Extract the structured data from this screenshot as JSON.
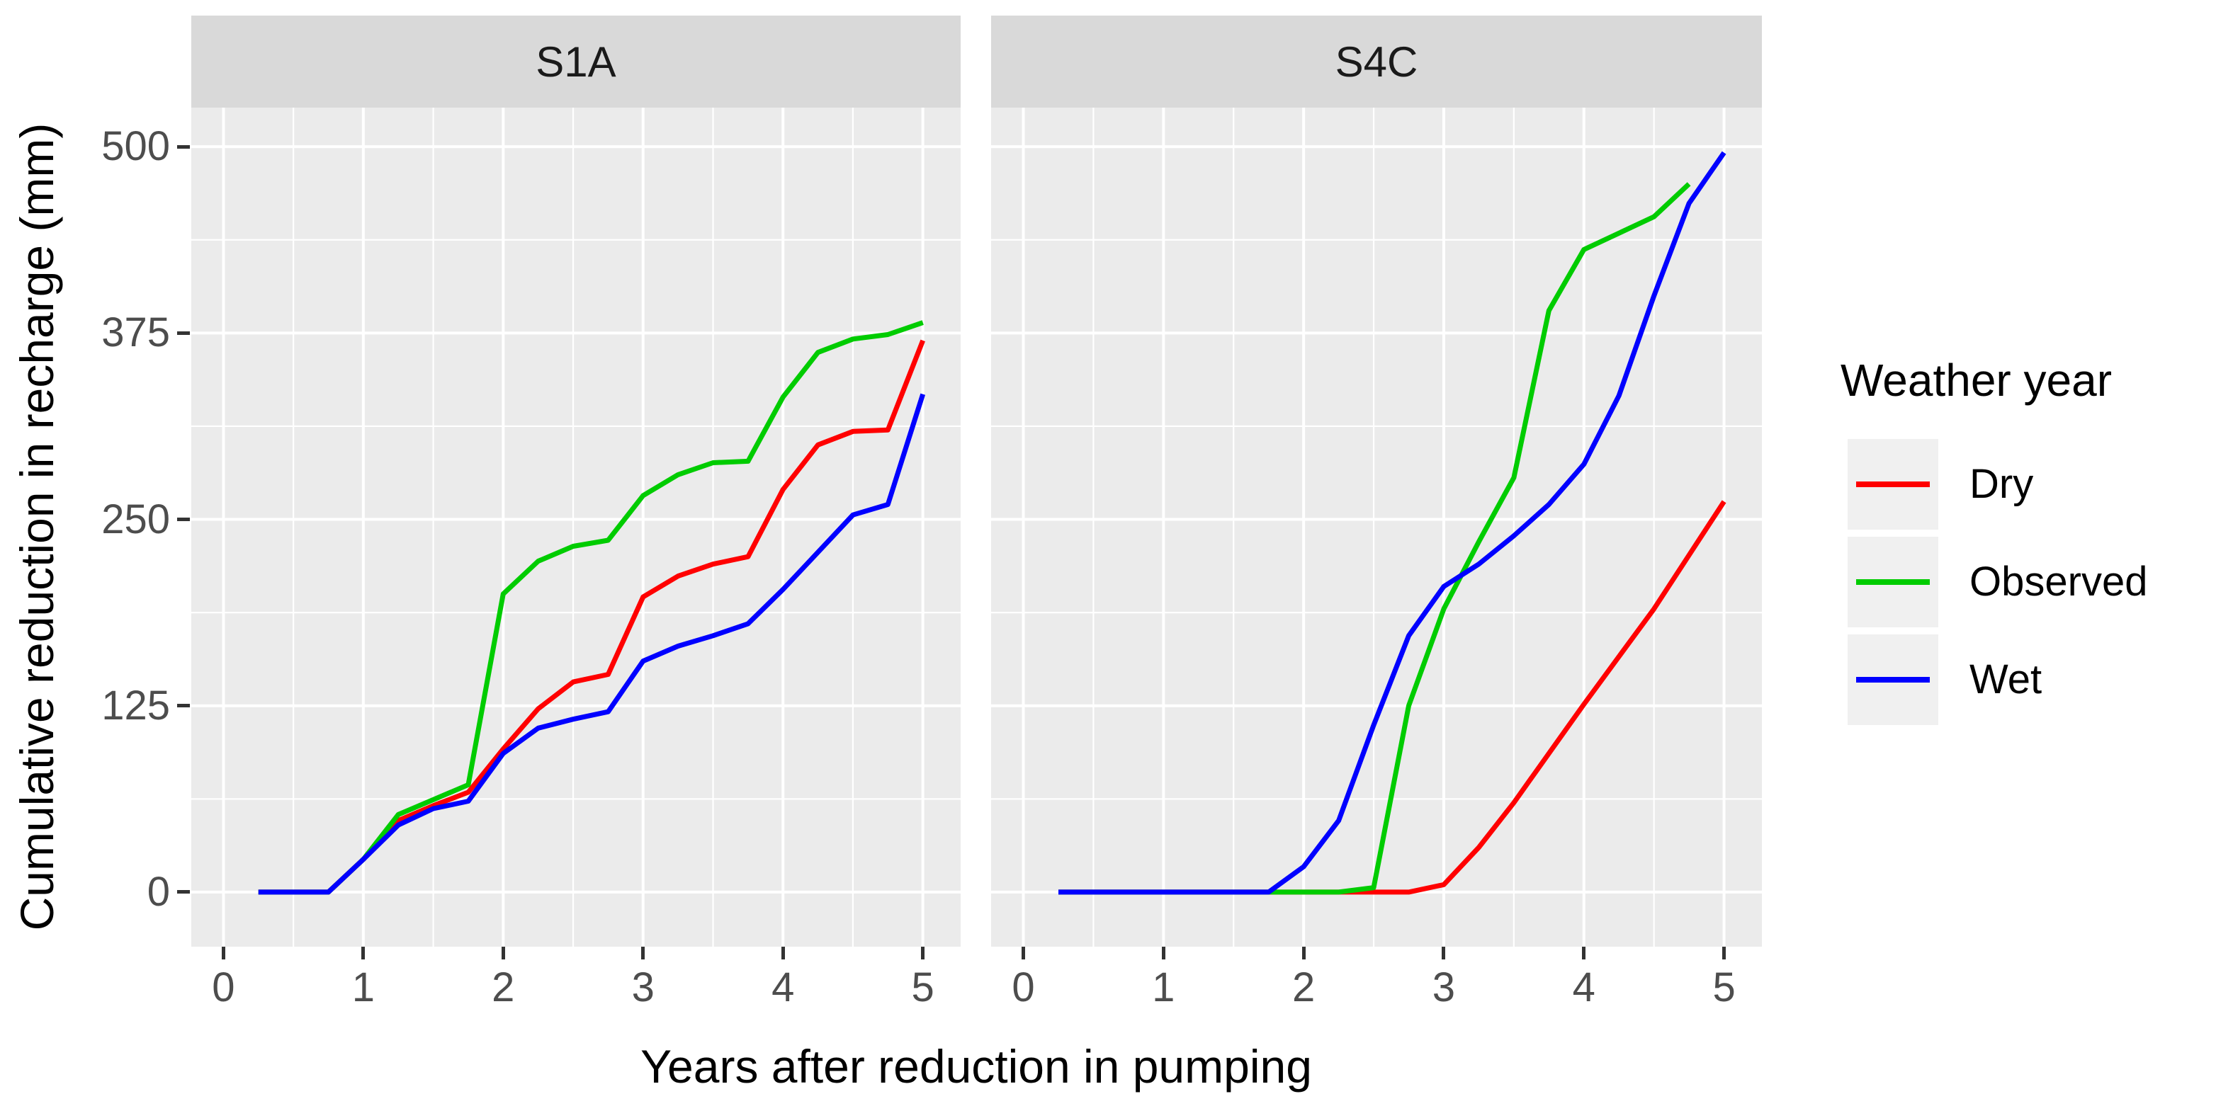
{
  "chart_data": {
    "type": "line",
    "title": "",
    "xlabel": "Years after reduction in pumping",
    "ylabel": "Cumulative reduction in recharge (mm)",
    "x_ticks": [
      0,
      1,
      2,
      3,
      4,
      5
    ],
    "y_ticks": [
      0,
      125,
      250,
      375,
      500
    ],
    "xlim": [
      -0.23,
      5.27
    ],
    "ylim": [
      -36.6,
      526.2
    ],
    "grid": true,
    "legend_position": "right",
    "colors": {
      "panel_bg": "#ebebeb",
      "strip_bg": "#d9d9d9",
      "grid": "#ffffff",
      "tick": "#333333",
      "tick_label": "#4d4d4d",
      "dry": "#ff0000",
      "observed": "#00cc00",
      "wet": "#0000ff"
    },
    "legend": {
      "title": "Weather year",
      "entries": [
        {
          "label": "Dry",
          "color": "#ff0000"
        },
        {
          "label": "Observed",
          "color": "#00cc00"
        },
        {
          "label": "Wet",
          "color": "#0000ff"
        }
      ]
    },
    "facets": [
      {
        "label": "S1A",
        "series": [
          {
            "name": "Dry",
            "color": "#ff0000",
            "x": [
              0.25,
              0.5,
              0.75,
              1.0,
              1.25,
              1.5,
              1.75,
              2.0,
              2.25,
              2.5,
              2.75,
              3.0,
              3.25,
              3.5,
              3.75,
              4.0,
              4.25,
              4.5,
              4.75,
              5.0
            ],
            "y": [
              0,
              0,
              0,
              22,
              48,
              58,
              67,
              96,
              123,
              141,
              146,
              198,
              212,
              220,
              225,
              270,
              300,
              309,
              310,
              370
            ]
          },
          {
            "name": "Observed",
            "color": "#00cc00",
            "x": [
              0.25,
              0.5,
              0.75,
              1.0,
              1.25,
              1.5,
              1.75,
              2.0,
              2.25,
              2.5,
              2.75,
              3.0,
              3.25,
              3.5,
              3.75,
              4.0,
              4.25,
              4.5,
              4.75,
              5.0
            ],
            "y": [
              0,
              0,
              0,
              22,
              52,
              62,
              72,
              200,
              222,
              232,
              236,
              266,
              280,
              288,
              289,
              332,
              362,
              371,
              374,
              382
            ]
          },
          {
            "name": "Wet",
            "color": "#0000ff",
            "x": [
              0.25,
              0.5,
              0.75,
              1.0,
              1.25,
              1.5,
              1.75,
              2.0,
              2.25,
              2.5,
              2.75,
              3.0,
              3.25,
              3.5,
              3.75,
              4.0,
              4.25,
              4.5,
              4.75,
              5.0
            ],
            "y": [
              0,
              0,
              0,
              22,
              45,
              56,
              61,
              93,
              110,
              116,
              121,
              155,
              165,
              172,
              180,
              203,
              228,
              253,
              260,
              334
            ]
          }
        ]
      },
      {
        "label": "S4C",
        "series": [
          {
            "name": "Dry",
            "color": "#ff0000",
            "x": [
              0.25,
              0.5,
              0.75,
              1.0,
              1.25,
              1.5,
              1.75,
              2.0,
              2.25,
              2.5,
              2.75,
              3.0,
              3.25,
              3.5,
              3.75,
              4.0,
              4.25,
              4.5,
              4.75,
              5.0
            ],
            "y": [
              0,
              0,
              0,
              0,
              0,
              0,
              0,
              0,
              0,
              0,
              0,
              5,
              30,
              60,
              93,
              126,
              158,
              190,
              226,
              262
            ]
          },
          {
            "name": "Observed",
            "color": "#00cc00",
            "x": [
              0.25,
              0.5,
              0.75,
              1.0,
              1.25,
              1.5,
              1.75,
              2.0,
              2.25,
              2.5,
              2.75,
              3.0,
              3.25,
              3.5,
              3.75,
              4.0,
              4.25,
              4.5,
              4.75
            ],
            "y": [
              0,
              0,
              0,
              0,
              0,
              0,
              0,
              0,
              0,
              3,
              125,
              190,
              235,
              278,
              390,
              431,
              442,
              453,
              475
            ]
          },
          {
            "name": "Wet",
            "color": "#0000ff",
            "x": [
              0.25,
              0.5,
              0.75,
              1.0,
              1.25,
              1.5,
              1.75,
              2.0,
              2.25,
              2.5,
              2.75,
              3.0,
              3.25,
              3.5,
              3.75,
              4.0,
              4.25,
              4.5,
              4.75,
              5.0
            ],
            "y": [
              0,
              0,
              0,
              0,
              0,
              0,
              0,
              17,
              48,
              112,
              172,
              205,
              220,
              239,
              260,
              287,
              333,
              400,
              462,
              496
            ]
          }
        ]
      }
    ]
  }
}
